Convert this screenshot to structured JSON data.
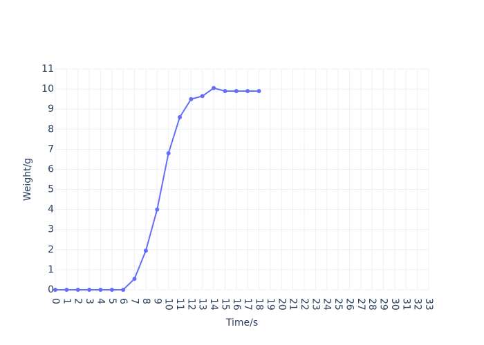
{
  "chart_data": {
    "type": "line",
    "xlabel": "Time/s",
    "ylabel": "Weight/g",
    "xlim": [
      0,
      33
    ],
    "ylim": [
      0,
      11
    ],
    "x_ticks": [
      0,
      1,
      2,
      3,
      4,
      5,
      6,
      7,
      8,
      9,
      10,
      11,
      12,
      13,
      14,
      15,
      16,
      17,
      18,
      19,
      20,
      21,
      22,
      23,
      24,
      25,
      26,
      27,
      28,
      29,
      30,
      31,
      32,
      33
    ],
    "y_ticks": [
      0,
      1,
      2,
      3,
      4,
      5,
      6,
      7,
      8,
      9,
      10,
      11
    ],
    "grid": true,
    "legend": "none",
    "series": [
      {
        "color": "#636efa",
        "x": [
          0,
          1,
          2,
          3,
          4,
          5,
          6,
          7,
          8,
          9,
          10,
          11,
          12,
          13,
          14,
          15,
          16,
          17,
          18
        ],
        "y": [
          0,
          0,
          0,
          0,
          0,
          0,
          0,
          0.55,
          1.95,
          4.0,
          6.8,
          8.6,
          9.5,
          9.65,
          10.05,
          9.9,
          9.9,
          9.9,
          9.9
        ]
      }
    ]
  }
}
